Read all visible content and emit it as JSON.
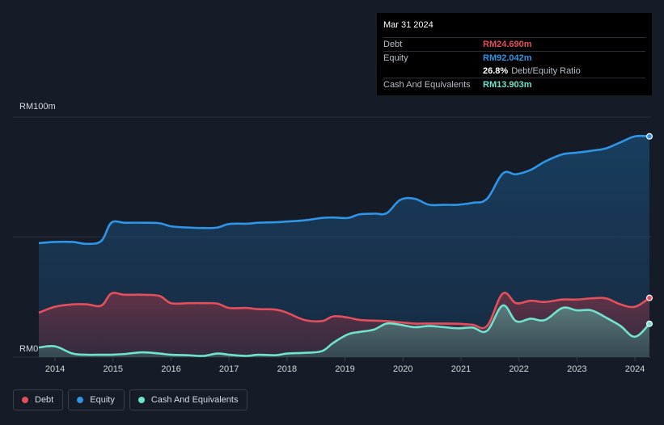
{
  "chart_data": {
    "type": "area",
    "title": "",
    "xlabel": "",
    "ylabel": "",
    "y_unit": "RM m",
    "ylim": [
      0,
      100
    ],
    "y_tick_labels": {
      "top": "RM100m",
      "bottom": "RM0"
    },
    "x_tick_labels": [
      "2014",
      "2015",
      "2016",
      "2017",
      "2018",
      "2019",
      "2020",
      "2021",
      "2022",
      "2023",
      "2024"
    ],
    "x_range": [
      2013.72,
      2024.25
    ],
    "series": [
      {
        "name": "Equity",
        "color": "#2f95e6",
        "x": [
          2013.72,
          2014.0,
          2014.3,
          2014.55,
          2014.8,
          2014.97,
          2015.2,
          2015.5,
          2015.8,
          2016.0,
          2016.3,
          2016.55,
          2016.8,
          2017.0,
          2017.3,
          2017.5,
          2017.8,
          2018.0,
          2018.3,
          2018.6,
          2018.8,
          2019.05,
          2019.25,
          2019.5,
          2019.72,
          2019.95,
          2020.2,
          2020.45,
          2020.7,
          2020.95,
          2021.2,
          2021.45,
          2021.72,
          2021.95,
          2022.2,
          2022.45,
          2022.75,
          2023.0,
          2023.25,
          2023.5,
          2023.75,
          2024.0,
          2024.25
        ],
        "values": [
          47.5,
          48.0,
          48.0,
          47.2,
          48.5,
          56.0,
          56.0,
          56.0,
          55.8,
          54.5,
          54.0,
          53.8,
          54.0,
          55.5,
          55.6,
          56.0,
          56.2,
          56.5,
          57.0,
          58.0,
          58.2,
          58.0,
          59.5,
          59.8,
          60.0,
          65.5,
          66.0,
          63.5,
          63.5,
          63.5,
          64.3,
          66.0,
          76.5,
          76.2,
          78.0,
          81.5,
          84.5,
          85.2,
          86.0,
          87.0,
          89.5,
          92.0,
          92.0
        ]
      },
      {
        "name": "Debt",
        "color": "#e3505c",
        "x": [
          2013.72,
          2014.0,
          2014.3,
          2014.55,
          2014.8,
          2014.97,
          2015.2,
          2015.5,
          2015.8,
          2016.0,
          2016.3,
          2016.55,
          2016.8,
          2017.0,
          2017.3,
          2017.5,
          2017.8,
          2018.0,
          2018.3,
          2018.6,
          2018.8,
          2019.05,
          2019.25,
          2019.5,
          2019.72,
          2019.95,
          2020.2,
          2020.45,
          2020.7,
          2020.95,
          2021.2,
          2021.45,
          2021.72,
          2021.95,
          2022.2,
          2022.45,
          2022.75,
          2023.0,
          2023.25,
          2023.5,
          2023.75,
          2024.0,
          2024.25
        ],
        "values": [
          18.5,
          21.0,
          22.0,
          22.0,
          21.5,
          26.5,
          26.0,
          26.0,
          25.5,
          22.5,
          22.5,
          22.5,
          22.3,
          20.5,
          20.5,
          20.0,
          19.8,
          18.5,
          15.5,
          15.0,
          17.0,
          16.5,
          15.5,
          15.2,
          15.0,
          14.5,
          14.0,
          14.0,
          14.0,
          13.9,
          13.5,
          13.0,
          26.5,
          22.5,
          23.5,
          23.0,
          24.0,
          24.0,
          24.5,
          24.5,
          22.0,
          21.0,
          24.69
        ]
      },
      {
        "name": "Cash And Equivalents",
        "color": "#6fe3cd",
        "x": [
          2013.72,
          2014.0,
          2014.3,
          2014.55,
          2014.8,
          2014.97,
          2015.2,
          2015.5,
          2015.8,
          2016.0,
          2016.3,
          2016.55,
          2016.8,
          2017.0,
          2017.3,
          2017.5,
          2017.8,
          2018.0,
          2018.3,
          2018.6,
          2018.8,
          2019.05,
          2019.25,
          2019.5,
          2019.72,
          2019.95,
          2020.2,
          2020.45,
          2020.7,
          2020.95,
          2021.2,
          2021.45,
          2021.72,
          2021.95,
          2022.2,
          2022.45,
          2022.75,
          2023.0,
          2023.25,
          2023.5,
          2023.75,
          2024.0,
          2024.25
        ],
        "values": [
          4.0,
          4.5,
          1.5,
          1.0,
          1.0,
          1.0,
          1.3,
          2.0,
          1.5,
          1.0,
          0.8,
          0.5,
          1.5,
          1.0,
          0.5,
          1.0,
          0.8,
          1.5,
          1.8,
          2.5,
          6.0,
          9.5,
          10.5,
          11.5,
          14.0,
          13.5,
          12.5,
          13.0,
          12.5,
          12.0,
          12.3,
          11.0,
          21.5,
          15.0,
          16.0,
          15.5,
          20.5,
          19.5,
          19.5,
          16.5,
          13.0,
          8.5,
          13.903
        ]
      }
    ],
    "tooltip": {
      "date": "Mar 31 2024",
      "rows": [
        {
          "label": "Debt",
          "value": "RM24.690m",
          "color": "#e3505c"
        },
        {
          "label": "Equity",
          "value": "RM92.042m",
          "color": "#2f95e6"
        },
        {
          "label": "",
          "value": "26.8%",
          "suffix": "Debt/Equity Ratio",
          "color": "#ffffff"
        },
        {
          "label": "Cash And Equivalents",
          "value": "RM13.903m",
          "color": "#6fe3cd"
        }
      ]
    }
  },
  "legend": [
    {
      "label": "Debt",
      "color": "#e3505c"
    },
    {
      "label": "Equity",
      "color": "#2f95e6"
    },
    {
      "label": "Cash And Equivalents",
      "color": "#6fe3cd"
    }
  ]
}
